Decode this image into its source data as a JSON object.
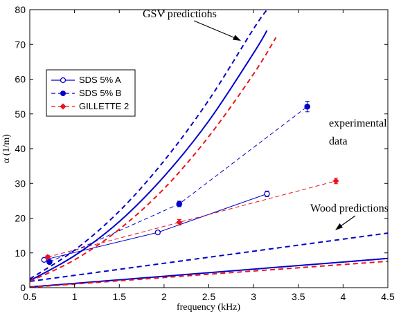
{
  "chart_data": {
    "type": "line",
    "xlabel": "frequency (kHz)",
    "ylabel": "α (1/m)",
    "xlim": [
      0.5,
      4.5
    ],
    "ylim": [
      0,
      80
    ],
    "xticks": [
      "0.5",
      "1",
      "1.5",
      "2",
      "2.5",
      "3",
      "3.5",
      "4",
      "4.5"
    ],
    "yticks": [
      "0",
      "10",
      "20",
      "30",
      "40",
      "50",
      "60",
      "70",
      "80"
    ],
    "grid": false,
    "legend": {
      "placement": "upper-left",
      "entries": [
        "SDS 5% A",
        "SDS 5% B",
        "GILLETTE 2"
      ]
    },
    "colors": {
      "blue": "#0000cc",
      "red": "#e8141b"
    },
    "experimental": [
      {
        "name": "SDS 5% A",
        "color": "#0000cc",
        "marker": "open-circle",
        "line": "solid",
        "x": [
          0.66,
          1.93,
          3.15
        ],
        "y": [
          8.0,
          15.9,
          27.0
        ],
        "err": [
          0.5,
          0.5,
          0.8
        ]
      },
      {
        "name": "SDS 5% B",
        "color": "#0000cc",
        "marker": "filled-circle",
        "line": "dashed",
        "x": [
          0.72,
          2.17,
          3.6
        ],
        "y": [
          7.4,
          24.1,
          52.1
        ],
        "err": [
          0.5,
          0.8,
          1.5
        ]
      },
      {
        "name": "GILLETTE 2",
        "color": "#e8141b",
        "marker": "filled-diamond",
        "line": "dashed",
        "x": [
          0.7,
          2.17,
          3.92
        ],
        "y": [
          8.8,
          18.8,
          30.7
        ],
        "err": [
          0.5,
          0.8,
          0.8
        ]
      }
    ],
    "gsv_predictions": [
      {
        "color": "#0000cc",
        "line": "solid",
        "x": [
          0.5,
          1.0,
          1.5,
          2.0,
          2.5,
          3.0,
          3.15
        ],
        "y": [
          2.0,
          9.2,
          19.0,
          32.0,
          48.0,
          67.5,
          74.0
        ]
      },
      {
        "color": "#0000cc",
        "line": "dashed",
        "x": [
          0.5,
          1.0,
          1.5,
          2.0,
          2.5,
          3.0,
          3.15
        ],
        "y": [
          2.5,
          10.8,
          22.0,
          36.5,
          54.0,
          74.5,
          80.0
        ]
      },
      {
        "color": "#e8141b",
        "line": "dashed",
        "x": [
          0.5,
          1.0,
          1.5,
          2.0,
          2.5,
          3.0,
          3.25
        ],
        "y": [
          1.8,
          8.0,
          16.8,
          28.5,
          43.5,
          61.5,
          72.0
        ]
      }
    ],
    "wood_predictions": [
      {
        "color": "#0000cc",
        "line": "solid",
        "x": [
          0.5,
          4.5
        ],
        "y": [
          0.2,
          8.4
        ]
      },
      {
        "color": "#0000cc",
        "line": "dashed",
        "x": [
          0.5,
          4.5
        ],
        "y": [
          1.8,
          15.7
        ]
      },
      {
        "color": "#e8141b",
        "line": "dashed",
        "x": [
          0.5,
          4.5
        ],
        "y": [
          0.1,
          7.6
        ]
      }
    ],
    "annotations": [
      {
        "text": "GSV predictions"
      },
      {
        "text": "experimental"
      },
      {
        "text": "data"
      },
      {
        "text": "Wood predictions"
      }
    ]
  }
}
